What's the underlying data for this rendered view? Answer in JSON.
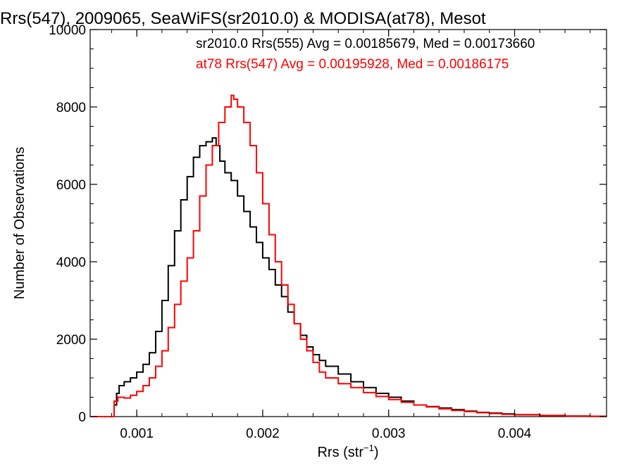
{
  "chart_data": {
    "type": "line",
    "title": "Rrs(547), 2009065, SeaWiFS(sr2010.0) & MODISA(at78), Mesot",
    "xlabel": "Rrs (str",
    "xlabel_sup": "−1",
    "xlabel_close": ")",
    "ylabel": "Number of Observations",
    "xlim": [
      0.00063,
      0.00473
    ],
    "ylim": [
      0,
      10000
    ],
    "x_ticks": [
      0.001,
      0.002,
      0.003,
      0.004
    ],
    "x_tick_labels": [
      "0.001",
      "0.002",
      "0.003",
      "0.004"
    ],
    "y_ticks": [
      0,
      2000,
      4000,
      6000,
      8000,
      10000
    ],
    "y_tick_labels": [
      "0",
      "2000",
      "4000",
      "6000",
      "8000",
      "10000"
    ],
    "grid": false,
    "legend_placement": "top-right",
    "series": [
      {
        "name": "sr2010.0 Rrs(555) Avg = 0.00185679, Med = 0.00173660",
        "color": "#000000",
        "x": [
          0.00063,
          0.00081,
          0.00082,
          0.00084,
          0.00086,
          0.0009,
          0.00095,
          0.001,
          0.00105,
          0.0011,
          0.00115,
          0.0012,
          0.00125,
          0.0013,
          0.00135,
          0.0014,
          0.00145,
          0.0015,
          0.00155,
          0.0016,
          0.00163,
          0.00166,
          0.0017,
          0.00175,
          0.0018,
          0.00185,
          0.0019,
          0.00195,
          0.002,
          0.00205,
          0.0021,
          0.00215,
          0.0022,
          0.00225,
          0.0023,
          0.00235,
          0.0024,
          0.00245,
          0.0025,
          0.0026,
          0.0027,
          0.0028,
          0.0029,
          0.003,
          0.0031,
          0.0032,
          0.0033,
          0.0034,
          0.0035,
          0.0036,
          0.0037,
          0.0038,
          0.0039,
          0.004,
          0.0042,
          0.0044,
          0.0046,
          0.00473
        ],
        "y": [
          0,
          0,
          300,
          600,
          800,
          900,
          1000,
          1150,
          1350,
          1650,
          2200,
          3000,
          3900,
          4800,
          5600,
          6200,
          6700,
          7000,
          7100,
          7200,
          7000,
          6600,
          6300,
          6100,
          5700,
          5300,
          4900,
          4500,
          4100,
          3800,
          3400,
          3100,
          2700,
          2400,
          2100,
          1800,
          1600,
          1450,
          1300,
          1100,
          900,
          750,
          600,
          500,
          400,
          300,
          260,
          220,
          180,
          140,
          110,
          90,
          70,
          50,
          30,
          15,
          8,
          5
        ]
      },
      {
        "name": "at78 Rrs(547) Avg = 0.00195928, Med = 0.00186175",
        "color": "#ff0000",
        "x": [
          0.00063,
          0.00081,
          0.00082,
          0.00085,
          0.0009,
          0.00095,
          0.001,
          0.00105,
          0.0011,
          0.00115,
          0.0012,
          0.00125,
          0.0013,
          0.00135,
          0.0014,
          0.00145,
          0.0015,
          0.00155,
          0.0016,
          0.00165,
          0.0017,
          0.00175,
          0.00177,
          0.0018,
          0.00185,
          0.0019,
          0.00195,
          0.002,
          0.00205,
          0.0021,
          0.00215,
          0.0022,
          0.00225,
          0.0023,
          0.00235,
          0.0024,
          0.00245,
          0.0025,
          0.0026,
          0.0027,
          0.0028,
          0.0029,
          0.003,
          0.0031,
          0.0032,
          0.0033,
          0.0034,
          0.0035,
          0.0036,
          0.0037,
          0.0038,
          0.0039,
          0.004,
          0.0042,
          0.0044,
          0.0046,
          0.00473
        ],
        "y": [
          0,
          0,
          400,
          500,
          480,
          550,
          650,
          800,
          1000,
          1300,
          1700,
          2300,
          2900,
          3500,
          4100,
          4800,
          5700,
          6500,
          7000,
          7600,
          8000,
          8300,
          8200,
          8000,
          7600,
          7000,
          6300,
          5500,
          4700,
          4000,
          3400,
          2900,
          2400,
          2000,
          1700,
          1400,
          1150,
          1000,
          850,
          750,
          620,
          520,
          440,
          370,
          300,
          250,
          200,
          160,
          130,
          100,
          80,
          60,
          45,
          25,
          15,
          8,
          5
        ]
      }
    ]
  }
}
